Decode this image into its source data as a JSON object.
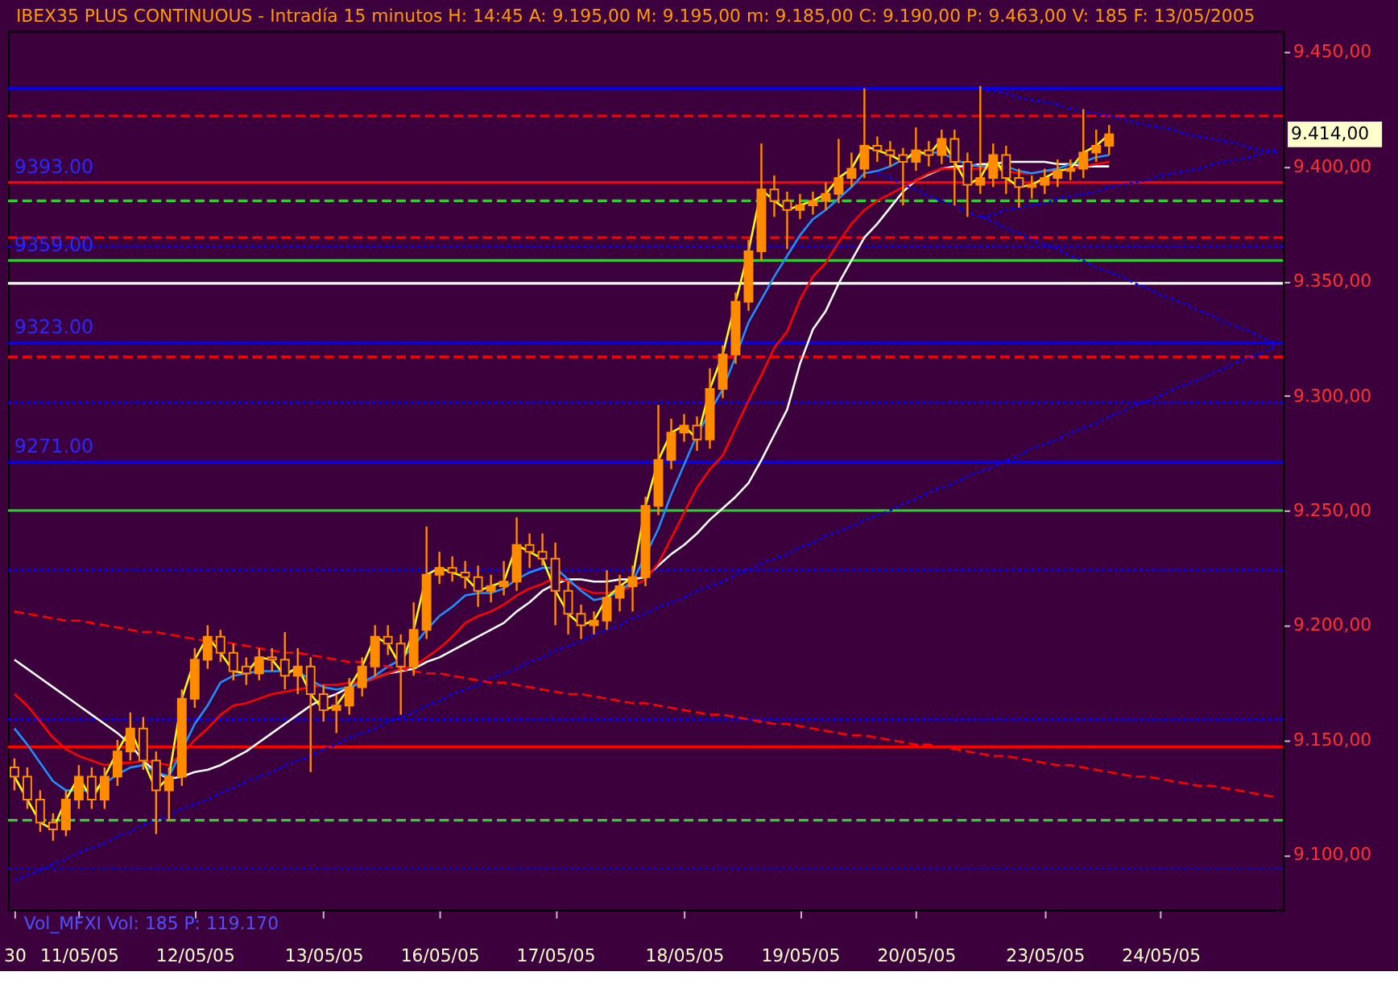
{
  "chart_data": {
    "type": "candlestick",
    "title": "IBEX35 PLUS CONTINUOUS - Intradía 15 minutos H: 14:45 A: 9.195,00 M: 9.195,00 m: 9.185,00 C: 9.190,00 P: 9.463,00 V: 185 F: 13/05/2005",
    "color": "#ff8c00",
    "categories": [
      "30",
      null,
      null,
      null,
      null,
      "11/05/05",
      null,
      null,
      null,
      null,
      null,
      null,
      null,
      null,
      "12/05/05",
      null,
      null,
      null,
      null,
      null,
      null,
      null,
      null,
      null,
      "13/05/05",
      null,
      null,
      null,
      null,
      null,
      null,
      null,
      null,
      "16/05/05",
      null,
      null,
      null,
      null,
      null,
      null,
      null,
      null,
      "17/05/05",
      null,
      null,
      null,
      null,
      null,
      null,
      null,
      null,
      null,
      "18/05/05",
      null,
      null,
      null,
      null,
      null,
      null,
      null,
      null,
      "19/05/05",
      null,
      null,
      null,
      null,
      null,
      null,
      null,
      null,
      "20/05/05",
      null,
      null,
      null,
      null,
      null,
      null,
      null,
      null,
      null,
      "23/05/05",
      null,
      null,
      null,
      null,
      null,
      null,
      null,
      null,
      "24/05/05",
      null,
      null,
      null,
      null,
      null,
      null,
      null,
      null,
      null
    ],
    "ohlc": [
      [
        9138,
        9142,
        9128,
        9134
      ],
      [
        9134,
        9138,
        9120,
        9124
      ],
      [
        9124,
        9128,
        9110,
        9114
      ],
      [
        9114,
        9118,
        9106,
        9111
      ],
      [
        9111,
        9128,
        9108,
        9124
      ],
      [
        9124,
        9139,
        9120,
        9134
      ],
      [
        9134,
        9138,
        9120,
        9124
      ],
      [
        9124,
        9138,
        9120,
        9134
      ],
      [
        9134,
        9150,
        9130,
        9145
      ],
      [
        9145,
        9162,
        9141,
        9155
      ],
      [
        9155,
        9160,
        9137,
        9141
      ],
      [
        9141,
        9145,
        9109,
        9128
      ],
      [
        9128,
        9138,
        9115,
        9134
      ],
      [
        9134,
        9172,
        9130,
        9168
      ],
      [
        9168,
        9190,
        9164,
        9185
      ],
      [
        9185,
        9200,
        9181,
        9195
      ],
      [
        9195,
        9198,
        9184,
        9188
      ],
      [
        9188,
        9192,
        9176,
        9180
      ],
      [
        9182,
        9186,
        9174,
        9179
      ],
      [
        9179,
        9190,
        9176,
        9186
      ],
      [
        9186,
        9190,
        9180,
        9185
      ],
      [
        9185,
        9197,
        9172,
        9178
      ],
      [
        9178,
        9190,
        9170,
        9182
      ],
      [
        9182,
        9186,
        9136,
        9170
      ],
      [
        9170,
        9174,
        9158,
        9163
      ],
      [
        9163,
        9170,
        9153,
        9165
      ],
      [
        9165,
        9177,
        9161,
        9173
      ],
      [
        9173,
        9186,
        9169,
        9182
      ],
      [
        9182,
        9200,
        9178,
        9195
      ],
      [
        9195,
        9200,
        9187,
        9192
      ],
      [
        9192,
        9196,
        9161,
        9182
      ],
      [
        9182,
        9210,
        9178,
        9198
      ],
      [
        9198,
        9243,
        9194,
        9222
      ],
      [
        9222,
        9232,
        9218,
        9225
      ],
      [
        9225,
        9230,
        9219,
        9223
      ],
      [
        9223,
        9228,
        9216,
        9221
      ],
      [
        9221,
        9226,
        9208,
        9215
      ],
      [
        9215,
        9222,
        9210,
        9217
      ],
      [
        9217,
        9228,
        9213,
        9219
      ],
      [
        9219,
        9247,
        9215,
        9235
      ],
      [
        9235,
        9240,
        9225,
        9232
      ],
      [
        9232,
        9240,
        9226,
        9229
      ],
      [
        9229,
        9236,
        9200,
        9215
      ],
      [
        9215,
        9219,
        9196,
        9205
      ],
      [
        9205,
        9209,
        9194,
        9200
      ],
      [
        9200,
        9206,
        9196,
        9202
      ],
      [
        9202,
        9224,
        9198,
        9212
      ],
      [
        9212,
        9222,
        9206,
        9217
      ],
      [
        9217,
        9226,
        9206,
        9221
      ],
      [
        9221,
        9256,
        9217,
        9252
      ],
      [
        9252,
        9296,
        9248,
        9272
      ],
      [
        9272,
        9290,
        9268,
        9284
      ],
      [
        9284,
        9292,
        9280,
        9287
      ],
      [
        9287,
        9291,
        9276,
        9281
      ],
      [
        9281,
        9312,
        9277,
        9303
      ],
      [
        9303,
        9322,
        9299,
        9318
      ],
      [
        9318,
        9345,
        9314,
        9341
      ],
      [
        9341,
        9368,
        9337,
        9363
      ],
      [
        9363,
        9410,
        9359,
        9390
      ],
      [
        9390,
        9396,
        9378,
        9385
      ],
      [
        9385,
        9389,
        9364,
        9381
      ],
      [
        9381,
        9388,
        9377,
        9383
      ],
      [
        9383,
        9389,
        9379,
        9385
      ],
      [
        9385,
        9393,
        9381,
        9388
      ],
      [
        9388,
        9412,
        9384,
        9395
      ],
      [
        9395,
        9406,
        9391,
        9399
      ],
      [
        9399,
        9434,
        9395,
        9409
      ],
      [
        9409,
        9413,
        9402,
        9407
      ],
      [
        9407,
        9411,
        9400,
        9405
      ],
      [
        9405,
        9408,
        9383,
        9402
      ],
      [
        9402,
        9417,
        9398,
        9407
      ],
      [
        9407,
        9411,
        9400,
        9405
      ],
      [
        9405,
        9416,
        9401,
        9412
      ],
      [
        9412,
        9416,
        9383,
        9402
      ],
      [
        9402,
        9406,
        9378,
        9392
      ],
      [
        9392,
        9435,
        9388,
        9395
      ],
      [
        9395,
        9410,
        9391,
        9405
      ],
      [
        9405,
        9409,
        9388,
        9395
      ],
      [
        9395,
        9399,
        9382,
        9391
      ],
      [
        9391,
        9396,
        9386,
        9392
      ],
      [
        9392,
        9399,
        9388,
        9395
      ],
      [
        9395,
        9403,
        9391,
        9398
      ],
      [
        9398,
        9403,
        9394,
        9399
      ],
      [
        9399,
        9425,
        9395,
        9406
      ],
      [
        9406,
        9416,
        9402,
        9409
      ],
      [
        9409,
        9418,
        9405,
        9414
      ],
      null,
      null,
      null,
      null,
      null,
      null,
      null,
      null,
      null,
      null,
      null,
      null,
      null
    ],
    "series": [
      {
        "type": "line",
        "color": "#ffffff",
        "line_style": "solid",
        "values": [
          9185,
          9181,
          9177,
          9173,
          9169,
          9165,
          9161,
          9157,
          9153,
          9148,
          9141,
          9136,
          9133,
          9134,
          9136,
          9137,
          9139,
          9142,
          9145,
          9149,
          9153,
          9157,
          9161,
          9165,
          9168,
          9170,
          9173,
          null,
          null,
          9179,
          9180,
          9181,
          9184,
          9186,
          9189,
          9192,
          9195,
          9198,
          9201,
          9206,
          9210,
          9215,
          9218,
          9220,
          9220,
          9219,
          9219,
          9220,
          9220,
          9221,
          9226,
          9231,
          9235,
          9240,
          9246,
          9251,
          9256,
          9262,
          9272,
          9283,
          9294,
          9314,
          9329,
          9337,
          9349,
          9359,
          9369,
          9375,
          9382,
          9389,
          9394,
          null,
          9399,
          9400,
          9400,
          9401,
          9401,
          9402,
          9402,
          9402,
          9402,
          9401,
          9401,
          9400,
          9400,
          9400,
          null,
          null,
          null,
          null,
          null,
          null,
          null,
          null,
          null,
          null,
          null,
          null,
          null
        ]
      },
      {
        "type": "line",
        "color": "#ff0000",
        "line_style": "solid",
        "values": [
          9170,
          9165,
          9158,
          9151,
          9146,
          9143,
          9141,
          9139,
          9140,
          9140,
          9141,
          9140,
          9139,
          9144,
          9150,
          9155,
          9161,
          9165,
          9166,
          9168,
          9170,
          9171,
          9172,
          9173,
          9174,
          9174,
          9175,
          9175,
          9177,
          9179,
          9181,
          9182,
          9186,
          9190,
          9195,
          9201,
          9204,
          9206,
          9209,
          9213,
          9216,
          9218,
          9221,
          9219,
          9216,
          9214,
          9214,
          9215,
          9217,
          9220,
          9227,
          9238,
          9249,
          9260,
          9268,
          9274,
          9286,
          9298,
          9309,
          9321,
          9328,
          9342,
          9352,
          9358,
          9367,
          9375,
          9381,
          9385,
          9388,
          9391,
          9394,
          9397,
          9399,
          9399,
          9399,
          9399,
          9399,
          9398,
          9397,
          9397,
          9398,
          9398,
          9399,
          9400,
          9401,
          9402,
          null,
          null,
          null,
          null,
          null,
          null,
          null,
          null,
          null,
          null,
          null,
          null,
          null
        ]
      },
      {
        "type": "line",
        "color": "#1e90ff",
        "line_style": "solid",
        "values": [
          9155,
          9148,
          9140,
          9132,
          9128,
          9128,
          9128,
          9131,
          9135,
          9138,
          9139,
          9136,
          9134,
          null,
          9157,
          9165,
          9175,
          9178,
          9179,
          9180,
          9180,
          9180,
          9180,
          9176,
          9173,
          9172,
          9173,
          9175,
          9178,
          9182,
          9185,
          9191,
          9198,
          9204,
          9208,
          9213,
          9214,
          9214,
          9216,
          9220,
          9223,
          9225,
          9225,
          9220,
          9215,
          9211,
          9212,
          9215,
          9219,
          null,
          9242,
          9257,
          9270,
          9283,
          null,
          9303,
          9317,
          9332,
          9342,
          9352,
          9361,
          9370,
          9377,
          9381,
          9386,
          9391,
          9397,
          9398,
          9400,
          9403,
          9405,
          9406,
          9406,
          9403,
          9401,
          9400,
          9400,
          9400,
          9398,
          9397,
          9398,
          9399,
          9401,
          9402,
          9404,
          9405,
          null,
          null,
          null,
          null,
          null,
          null,
          null,
          null,
          null,
          null,
          null,
          null,
          null
        ]
      },
      {
        "type": "line",
        "color": "#0000ff",
        "line_style": "dotted",
        "values": [
          9089,
          9091,
          9093,
          9096,
          9098,
          9101,
          9103,
          9105,
          9108,
          9110,
          9113,
          9115,
          9117,
          9120,
          9122,
          9124,
          9127,
          9129,
          9132,
          9134,
          9136,
          9139,
          9141,
          9143,
          9146,
          9148,
          9151,
          9153,
          9155,
          9158,
          9160,
          9162,
          9165,
          9167,
          9170,
          9172,
          9174,
          9177,
          9179,
          9181,
          9184,
          9186,
          9189,
          9191,
          9193,
          9196,
          9198,
          9200,
          9203,
          9205,
          9208,
          9210,
          9212,
          9215,
          9217,
          9219,
          9222,
          9224,
          9227,
          9229,
          9231,
          9234,
          9236,
          9239,
          9241,
          9243,
          9246,
          9248,
          9250,
          9253,
          9255,
          9258,
          9260,
          9262,
          9265,
          9267,
          9269,
          9272,
          9274,
          9277,
          9279,
          9281,
          9284,
          9286,
          9288,
          9291,
          9293,
          9296,
          9298,
          9300,
          9303,
          9305,
          9307,
          9310,
          9312,
          9315,
          9317,
          9319,
          9322
        ]
      },
      {
        "type": "line",
        "color": "#0000ff",
        "line_style": "dotted",
        "values": [
          null,
          null,
          null,
          null,
          null,
          null,
          null,
          null,
          null,
          null,
          null,
          null,
          null,
          null,
          null,
          null,
          null,
          null,
          null,
          null,
          null,
          null,
          null,
          null,
          null,
          null,
          null,
          null,
          null,
          null,
          null,
          null,
          null,
          null,
          null,
          null,
          null,
          null,
          null,
          null,
          null,
          null,
          null,
          null,
          null,
          null,
          null,
          null,
          null,
          null,
          null,
          null,
          null,
          null,
          null,
          null,
          null,
          null,
          null,
          null,
          null,
          null,
          null,
          null,
          null,
          null,
          null,
          null,
          null,
          null,
          null,
          null,
          null,
          null,
          null,
          9434,
          9433,
          9432,
          9430,
          9429,
          9428,
          9427,
          9425,
          9424,
          9423,
          9422,
          9421,
          9419,
          9418,
          9417,
          9416,
          9414,
          9413,
          9412,
          9411,
          9410,
          9408,
          9407,
          9406
        ]
      },
      {
        "type": "line",
        "color": "#0000ff",
        "line_style": "dotted",
        "values": [
          null,
          null,
          null,
          null,
          null,
          null,
          null,
          null,
          null,
          null,
          null,
          null,
          null,
          null,
          null,
          null,
          null,
          null,
          null,
          null,
          null,
          null,
          null,
          null,
          null,
          null,
          null,
          null,
          null,
          null,
          null,
          null,
          null,
          null,
          null,
          null,
          null,
          null,
          null,
          null,
          null,
          null,
          null,
          null,
          null,
          null,
          null,
          null,
          null,
          null,
          null,
          null,
          null,
          null,
          null,
          null,
          null,
          null,
          null,
          null,
          null,
          null,
          null,
          null,
          null,
          null,
          null,
          9397,
          9395,
          9392,
          9390,
          9387,
          9385,
          9383,
          9380,
          9378,
          9376,
          9373,
          9371,
          9368,
          9366,
          9364,
          9361,
          9359,
          9356,
          9354,
          9352,
          9349,
          9347,
          9344,
          9342,
          9340,
          9337,
          9335,
          9332,
          9330,
          9328,
          9325,
          9323
        ]
      },
      {
        "type": "line",
        "color": "#0000ff",
        "line_style": "dotted",
        "values": [
          null,
          null,
          null,
          null,
          null,
          null,
          null,
          null,
          null,
          null,
          null,
          null,
          null,
          null,
          null,
          null,
          null,
          null,
          null,
          null,
          null,
          null,
          null,
          null,
          null,
          null,
          null,
          null,
          null,
          null,
          null,
          null,
          null,
          null,
          null,
          null,
          null,
          null,
          null,
          null,
          null,
          null,
          null,
          null,
          null,
          null,
          null,
          null,
          null,
          null,
          null,
          null,
          null,
          null,
          null,
          null,
          null,
          null,
          null,
          null,
          null,
          null,
          null,
          null,
          null,
          null,
          null,
          null,
          null,
          null,
          null,
          null,
          null,
          null,
          null,
          9378,
          9379,
          9381,
          9382,
          9383,
          9384,
          9386,
          9387,
          9388,
          9389,
          9391,
          9392,
          9393,
          9394,
          9396,
          9397,
          9398,
          9399,
          9401,
          9402,
          9403,
          9404,
          9406,
          9407
        ]
      },
      {
        "type": "line",
        "color": "#ff0000",
        "line_style": "dashed",
        "values": [
          9206,
          9205,
          9204,
          9203,
          9202,
          9202,
          9201,
          9200,
          9199,
          9198,
          9197,
          9197,
          9196,
          9195,
          9194,
          9193,
          9193,
          9192,
          9191,
          9190,
          9189,
          9188,
          9188,
          9187,
          9186,
          9185,
          9184,
          9184,
          9183,
          9182,
          9181,
          9180,
          9179,
          9179,
          9178,
          9177,
          9176,
          9175,
          9175,
          9174,
          9173,
          9172,
          9171,
          9170,
          9170,
          9169,
          9168,
          9167,
          9166,
          9166,
          9165,
          9164,
          9163,
          9162,
          9161,
          9161,
          9160,
          9159,
          9158,
          9157,
          9157,
          9156,
          9155,
          9154,
          9153,
          9152,
          9152,
          9151,
          9150,
          9149,
          9148,
          9148,
          9147,
          9146,
          9145,
          9144,
          9143,
          9143,
          9142,
          9141,
          9140,
          9139,
          9139,
          9138,
          9137,
          9136,
          9135,
          9134,
          9134,
          9133,
          9132,
          9131,
          9130,
          9130,
          9129,
          9128,
          9127,
          9126,
          9125
        ]
      },
      {
        "type": "line",
        "color": "#ffff00",
        "line_style": "solid",
        "values": [
          9134,
          9124,
          9114,
          9111,
          9124,
          9134,
          9124,
          9134,
          9145,
          9155,
          9141,
          9128,
          9134,
          9168,
          9185,
          9195,
          9188,
          9180,
          9179,
          9186,
          9185,
          9178,
          9182,
          9170,
          9163,
          9165,
          9173,
          9182,
          9195,
          9192,
          9182,
          9198,
          9222,
          9225,
          9223,
          9221,
          9215,
          9217,
          9219,
          9235,
          9232,
          9229,
          9215,
          9205,
          9200,
          9202,
          9212,
          9217,
          9221,
          9252,
          9272,
          9284,
          9287,
          9281,
          9303,
          9318,
          9341,
          9363,
          9390,
          9385,
          9381,
          9383,
          9385,
          9388,
          9395,
          9399,
          9409,
          9407,
          9405,
          9402,
          9407,
          9405,
          9412,
          9402,
          9392,
          9395,
          9405,
          9395,
          9391,
          9392,
          9395,
          9398,
          9399,
          9406,
          9409,
          9414,
          null,
          null,
          null,
          null,
          null,
          null,
          null,
          null,
          null,
          null,
          null,
          null,
          null
        ]
      }
    ],
    "ref_lines": [
      {
        "axis": "y",
        "value": 9434,
        "color": "#0000ff",
        "line_style": "solid"
      },
      {
        "axis": "y",
        "value": 9422,
        "color": "#ff0000",
        "line_style": "dashed"
      },
      {
        "axis": "y",
        "value": 9393,
        "color": "#ff0000",
        "line_style": "solid",
        "label": "9393.00"
      },
      {
        "axis": "y",
        "value": 9385,
        "color": "#33cc33",
        "line_style": "dashed"
      },
      {
        "axis": "y",
        "value": 9369,
        "color": "#ff0000",
        "line_style": "dashed"
      },
      {
        "axis": "y",
        "value": 9365,
        "color": "#0000ff",
        "line_style": "dotted"
      },
      {
        "axis": "y",
        "value": 9359,
        "color": "#33cc33",
        "line_style": "solid",
        "label": "9359.00"
      },
      {
        "axis": "y",
        "value": 9349,
        "color": "#ffffff",
        "line_style": "solid"
      },
      {
        "axis": "y",
        "value": 9323,
        "color": "#0000ff",
        "line_style": "solid",
        "label": "9323.00"
      },
      {
        "axis": "y",
        "value": 9317,
        "color": "#ff0000",
        "line_style": "dashed"
      },
      {
        "axis": "y",
        "value": 9297,
        "color": "#0000ff",
        "line_style": "dotted"
      },
      {
        "axis": "y",
        "value": 9271,
        "color": "#0000ff",
        "line_style": "solid",
        "label": "9271.00"
      },
      {
        "axis": "y",
        "value": 9250,
        "color": "#33cc33",
        "line_style": "solid"
      },
      {
        "axis": "y",
        "value": 9224,
        "color": "#0000ff",
        "line_style": "dotted"
      },
      {
        "axis": "y",
        "value": 9159,
        "color": "#0000ff",
        "line_style": "dotted"
      },
      {
        "axis": "y",
        "value": 9147,
        "color": "#ff0000",
        "line_style": "solid"
      },
      {
        "axis": "y",
        "value": 9115,
        "color": "#33cc33",
        "line_style": "dashed"
      },
      {
        "axis": "y",
        "value": 9094,
        "color": "#0000ff",
        "line_style": "dotted"
      }
    ],
    "annotations": [
      "Vol_MFXI Vol: 185 P: 119.170",
      "9.414,00"
    ],
    "ylim": [
      9076,
      9459
    ],
    "yticks": [
      {
        "value": 9100,
        "label": "9.100,00"
      },
      {
        "value": 9150,
        "label": "9.150,00"
      },
      {
        "value": 9200,
        "label": "9.200,00"
      },
      {
        "value": 9250,
        "label": "9.250,00"
      },
      {
        "value": 9300,
        "label": "9.300,00"
      },
      {
        "value": 9350,
        "label": "9.350,00"
      },
      {
        "value": 9400,
        "label": "9.400,00"
      },
      {
        "value": 9450,
        "label": "9.450,00"
      }
    ],
    "grid": false
  }
}
